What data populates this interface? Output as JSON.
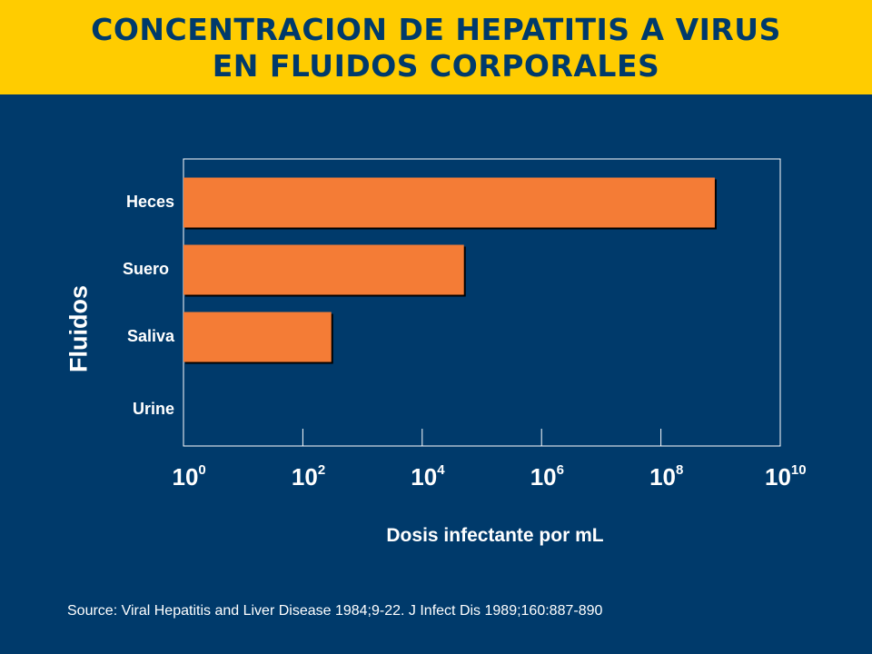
{
  "header": {
    "title_line1": "CONCENTRACION DE HEPATITIS A VIRUS",
    "title_line2": "EN  FLUIDOS CORPORALES"
  },
  "colors": {
    "background": "#003a6b",
    "banner": "#ffcc00",
    "bar": "#f47c36",
    "text": "#ffffff"
  },
  "chart_data": {
    "type": "bar",
    "orientation": "horizontal",
    "categories": [
      "Heces",
      "Suero",
      "Saliva",
      "Urine"
    ],
    "values": [
      800000000,
      50000,
      300,
      null
    ],
    "xscale": "log",
    "xlim": [
      1,
      10000000000
    ],
    "xticks": [
      {
        "base": "10",
        "exp": "0"
      },
      {
        "base": "10",
        "exp": "2"
      },
      {
        "base": "10",
        "exp": "4"
      },
      {
        "base": "10",
        "exp": "6"
      },
      {
        "base": "10",
        "exp": "8"
      },
      {
        "base": "10",
        "exp": "10"
      }
    ],
    "xlabel": "Dosis infectante por mL",
    "ylabel": "Fluidos",
    "grid": false,
    "legend": "none"
  },
  "footer": {
    "source": "Source: Viral Hepatitis and Liver Disease 1984;9-22. J Infect Dis 1989;160:887-890"
  }
}
